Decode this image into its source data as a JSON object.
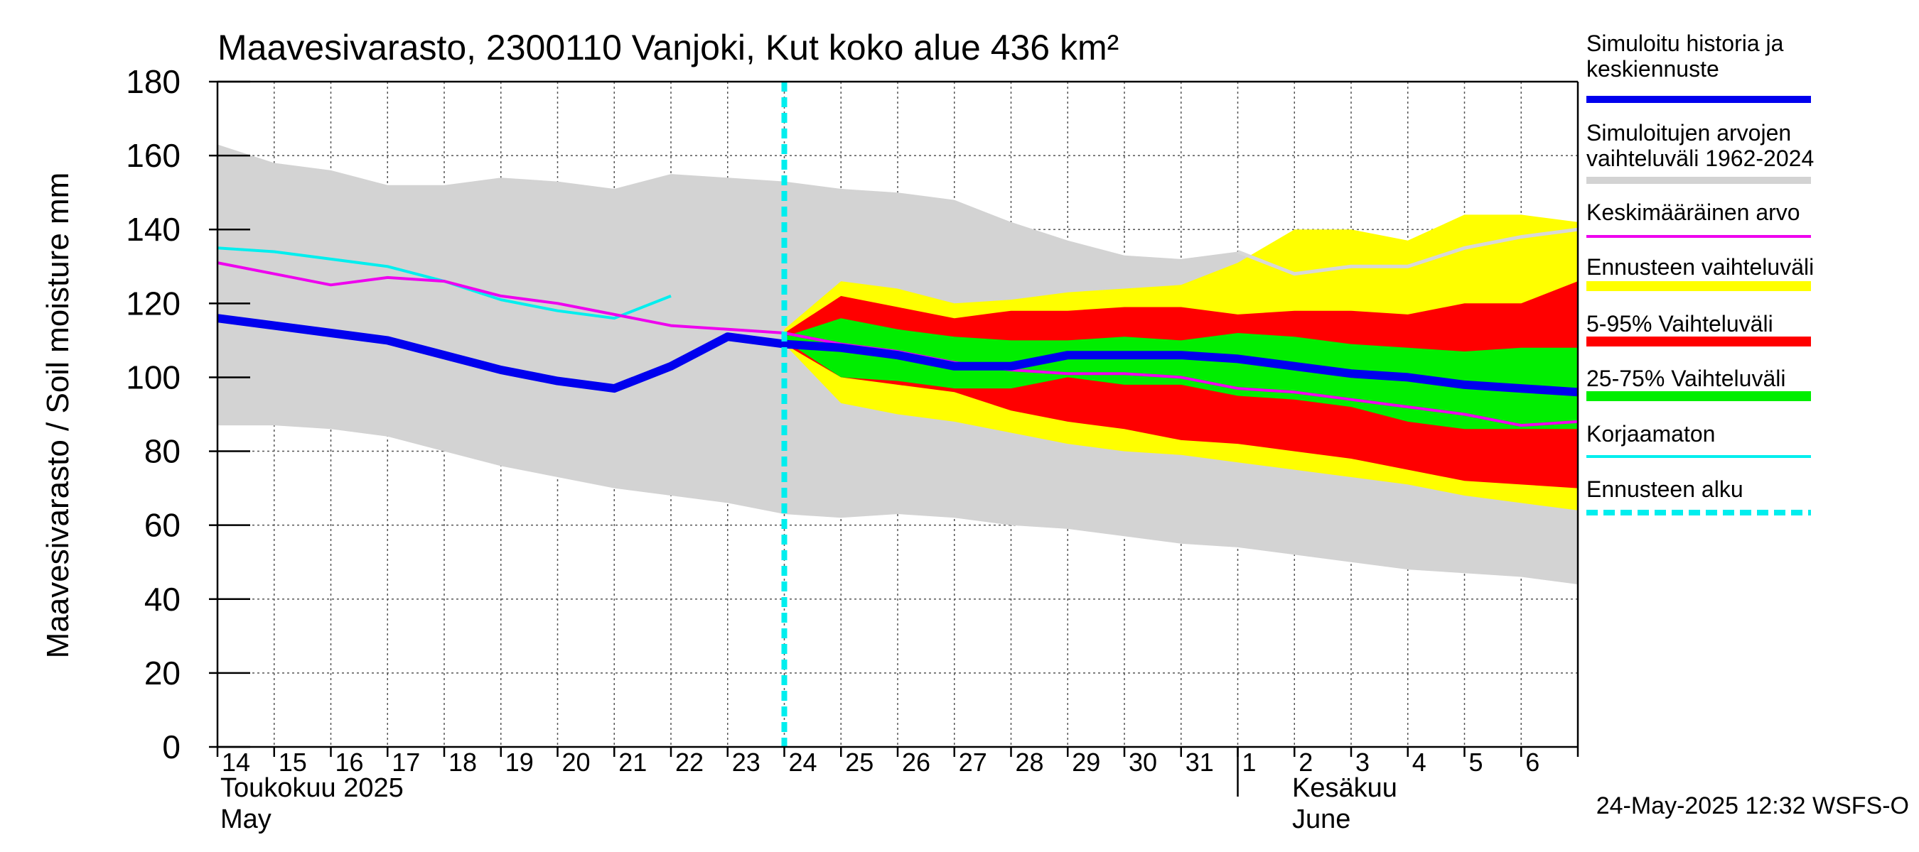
{
  "chart_data": {
    "type": "area",
    "title": "Maavesivarasto, 2300110 Vanjoki, Kut koko alue 436 km²",
    "ylabel": "Maavesivarasto / Soil moisture   mm",
    "ylim": [
      0,
      180
    ],
    "yticks": [
      "0",
      "20",
      "40",
      "60",
      "80",
      "100",
      "120",
      "140",
      "160",
      "180"
    ],
    "xlim": [
      0,
      24
    ],
    "day_labels": [
      "14",
      "15",
      "16",
      "17",
      "18",
      "19",
      "20",
      "21",
      "22",
      "23",
      "24",
      "25",
      "26",
      "27",
      "28",
      "29",
      "30",
      "31",
      "1",
      "2",
      "3",
      "4",
      "5",
      "6"
    ],
    "month_label_fi_1": "Toukokuu  2025",
    "month_label_en_1": "May",
    "month_label_fi_2": "Kesäkuu",
    "month_label_en_2": "June",
    "month_boundary_day": 18,
    "forecast_start_x": 10.0,
    "timestamp": "24-May-2025 12:32 WSFS-O",
    "legend": [
      {
        "key": "sim",
        "label_lines": [
          "Simuloitu historia ja",
          "keskiennuste"
        ],
        "color": "#0000ee"
      },
      {
        "key": "range",
        "label_lines": [
          "Simuloitujen arvojen",
          "vaihteluväli 1962-2024"
        ],
        "color": "#d3d3d3"
      },
      {
        "key": "mean",
        "label_lines": [
          "Keskimääräinen arvo"
        ],
        "color": "#ee00ee"
      },
      {
        "key": "fc_range",
        "label_lines": [
          "Ennusteen vaihteluväli"
        ],
        "color": "#ffff00"
      },
      {
        "key": "p5_95",
        "label_lines": [
          "5-95% Vaihteluväli"
        ],
        "color": "#ff0000"
      },
      {
        "key": "p25_75",
        "label_lines": [
          "25-75% Vaihteluväli"
        ],
        "color": "#00ee00"
      },
      {
        "key": "uncorr",
        "label_lines": [
          "Korjaamaton"
        ],
        "color": "#00eeee"
      },
      {
        "key": "fc_start",
        "label_lines": [
          "Ennusteen alku"
        ],
        "color": "#00eeee"
      }
    ],
    "series": {
      "hist_range": {
        "x": [
          0,
          1,
          2,
          3,
          4,
          5,
          6,
          7,
          8,
          9,
          10,
          11,
          12,
          13,
          14,
          15,
          16,
          17,
          18,
          19,
          20,
          21,
          22,
          23,
          24
        ],
        "upper": [
          163,
          158,
          156,
          152,
          152,
          154,
          153,
          151,
          155,
          154,
          153,
          151,
          150,
          148,
          142,
          137,
          133,
          132,
          134,
          128,
          130,
          130,
          135,
          138,
          140
        ],
        "lower": [
          87,
          87,
          86,
          84,
          80,
          76,
          73,
          70,
          68,
          66,
          63,
          62,
          63,
          62,
          60,
          59,
          57,
          55,
          54,
          52,
          50,
          48,
          47,
          46,
          44
        ]
      },
      "fc_range": {
        "x": [
          10,
          11,
          12,
          13,
          14,
          15,
          16,
          17,
          18,
          19,
          20,
          21,
          22,
          23,
          24
        ],
        "upper": [
          113,
          126,
          124,
          120,
          121,
          123,
          124,
          125,
          131,
          140,
          140,
          137,
          144,
          144,
          142
        ],
        "lower": [
          109,
          93,
          90,
          88,
          85,
          82,
          80,
          79,
          77,
          75,
          73,
          71,
          68,
          66,
          64
        ]
      },
      "p5_95": {
        "x": [
          10,
          11,
          12,
          13,
          14,
          15,
          16,
          17,
          18,
          19,
          20,
          21,
          22,
          23,
          24
        ],
        "upper": [
          112,
          122,
          119,
          116,
          118,
          118,
          119,
          119,
          117,
          118,
          118,
          117,
          120,
          120,
          126
        ],
        "lower": [
          109,
          100,
          98,
          96,
          91,
          88,
          86,
          83,
          82,
          80,
          78,
          75,
          72,
          71,
          70
        ]
      },
      "p25_75": {
        "x": [
          10,
          11,
          12,
          13,
          14,
          15,
          16,
          17,
          18,
          19,
          20,
          21,
          22,
          23,
          24
        ],
        "upper": [
          111,
          116,
          113,
          111,
          110,
          110,
          111,
          110,
          112,
          111,
          109,
          108,
          107,
          108,
          108
        ],
        "lower": [
          110,
          100,
          99,
          97,
          97,
          100,
          98,
          98,
          95,
          94,
          92,
          88,
          86,
          86,
          86
        ]
      },
      "sim": {
        "x": [
          0,
          1,
          2,
          3,
          4,
          5,
          6,
          7,
          8,
          9,
          10,
          11,
          12,
          13,
          14,
          15,
          16,
          17,
          18,
          19,
          20,
          21,
          22,
          23,
          24
        ],
        "y": [
          116,
          114,
          112,
          110,
          106,
          102,
          99,
          97,
          103,
          111,
          109,
          108,
          106,
          103,
          103,
          106,
          106,
          106,
          105,
          103,
          101,
          100,
          98,
          97,
          96
        ]
      },
      "mean": {
        "x": [
          0,
          1,
          2,
          3,
          4,
          5,
          6,
          7,
          8,
          9,
          10,
          11,
          12,
          13,
          14,
          15,
          16,
          17,
          18,
          19,
          20,
          21,
          22,
          23,
          24
        ],
        "y": [
          131,
          128,
          125,
          127,
          126,
          122,
          120,
          117,
          114,
          113,
          112,
          109,
          107,
          104,
          102,
          101,
          101,
          100,
          97,
          96,
          94,
          92,
          90,
          87,
          88
        ]
      },
      "uncorr": {
        "x": [
          0,
          1,
          2,
          3,
          4,
          5,
          6,
          7,
          8
        ],
        "y": [
          135,
          134,
          132,
          130,
          126,
          121,
          118,
          116,
          122
        ]
      }
    }
  }
}
